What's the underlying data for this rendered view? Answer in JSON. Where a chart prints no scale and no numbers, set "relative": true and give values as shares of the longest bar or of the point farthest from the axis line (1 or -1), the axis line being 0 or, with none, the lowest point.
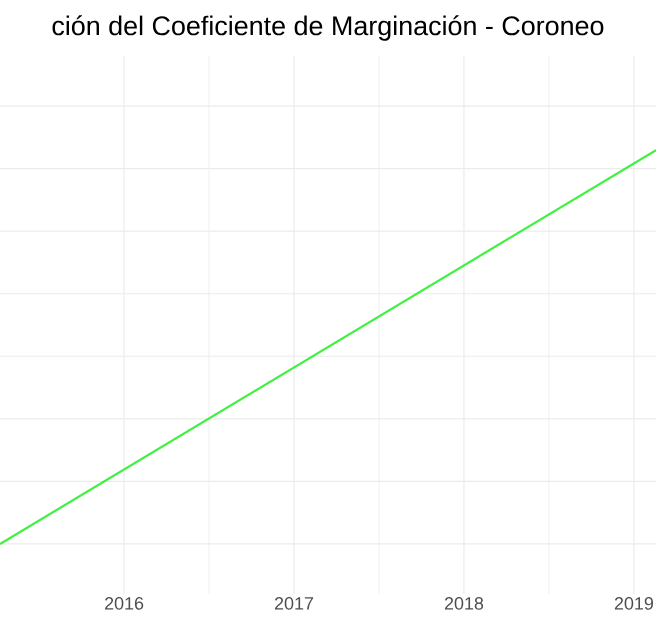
{
  "chart_data": {
    "type": "line",
    "title": "ción del Coeficiente de Marginación - Coroneo",
    "relative": true,
    "grid": true,
    "x": [
      2015.27,
      2019.13
    ],
    "xlim": [
      2015.27,
      2019.13
    ],
    "xticks": [
      2016,
      2017,
      2018,
      2019
    ],
    "series": [
      {
        "color": "#40f040",
        "values": [
          0,
          1
        ]
      }
    ]
  }
}
